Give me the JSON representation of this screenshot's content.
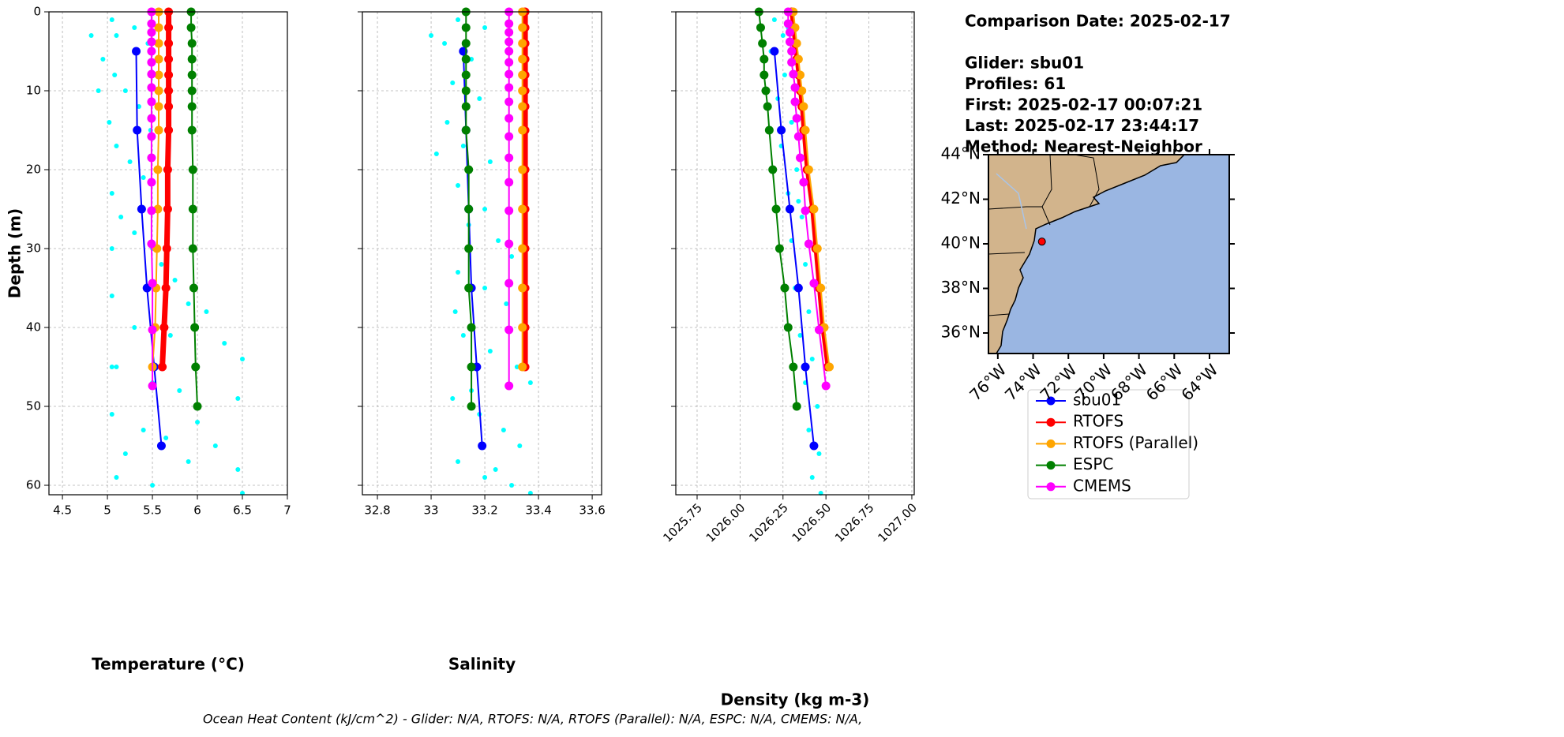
{
  "chart_data": [
    {
      "type": "line",
      "xlabel": "Temperature (°C)",
      "ylabel": "Depth (m)",
      "xlim": [
        4.35,
        7.0
      ],
      "xticks": [
        4.5,
        5.0,
        5.5,
        6.0,
        6.5,
        7.0
      ],
      "ylim": [
        0,
        61.2
      ],
      "y_inverted": true,
      "yticks": [
        0,
        10,
        20,
        30,
        40,
        50,
        60
      ],
      "ytick_labels": true,
      "grid": true,
      "xtick_rotation": 0,
      "scatter": {
        "color": "#00ffff",
        "x": [
          5.05,
          5.1,
          5.3,
          5.45,
          4.95,
          5.08,
          5.2,
          5.35,
          5.02,
          5.1,
          5.25,
          5.4,
          5.05,
          5.15,
          5.3,
          5.5,
          5.6,
          5.75,
          5.05,
          5.9,
          6.1,
          5.3,
          5.7,
          6.3,
          6.5,
          5.1,
          5.5,
          5.8,
          6.45,
          5.05,
          5.4,
          5.65,
          6.2,
          5.9,
          6.45,
          5.1,
          5.5,
          6.5,
          5.2,
          6.0,
          5.05,
          5.05,
          5.48,
          5.52,
          4.82,
          4.9
        ],
        "y": [
          1,
          3,
          2,
          4,
          6,
          8,
          10,
          12,
          14,
          17,
          19,
          21,
          23,
          26,
          28,
          30,
          32,
          34,
          36,
          37,
          38,
          40,
          41,
          42,
          44,
          45,
          47,
          48,
          49,
          51,
          53,
          54,
          55,
          57,
          58,
          59,
          60,
          61,
          56,
          52,
          30,
          45,
          15,
          35,
          3,
          10
        ]
      },
      "series": [
        {
          "name": "sbu01",
          "color": "#0000ff",
          "linewidth": 2,
          "x": [
            5.32,
            5.33,
            5.38,
            5.44,
            5.52,
            5.6
          ],
          "y": [
            5,
            15,
            25,
            35,
            45,
            55
          ]
        },
        {
          "name": "RTOFS",
          "color": "#ff0000",
          "linewidth": 7,
          "x": [
            5.68,
            5.68,
            5.68,
            5.68,
            5.68,
            5.68,
            5.68,
            5.68,
            5.67,
            5.67,
            5.66,
            5.65,
            5.63,
            5.61
          ],
          "y": [
            0,
            2,
            4,
            6,
            8,
            10,
            12,
            15,
            20,
            25,
            30,
            35,
            40,
            45
          ]
        },
        {
          "name": "RTOFS (Parallel)",
          "color": "#ffa500",
          "linewidth": 2,
          "x": [
            5.57,
            5.57,
            5.57,
            5.57,
            5.57,
            5.57,
            5.57,
            5.57,
            5.56,
            5.56,
            5.55,
            5.54,
            5.53,
            5.5
          ],
          "y": [
            0,
            2,
            4,
            6,
            8,
            10,
            12,
            15,
            20,
            25,
            30,
            35,
            40,
            45
          ]
        },
        {
          "name": "ESPC",
          "color": "#008000",
          "linewidth": 2,
          "x": [
            5.93,
            5.93,
            5.94,
            5.94,
            5.94,
            5.94,
            5.94,
            5.94,
            5.95,
            5.95,
            5.95,
            5.96,
            5.97,
            5.98,
            6.0
          ],
          "y": [
            0,
            2,
            4,
            6,
            8,
            10,
            12,
            15,
            20,
            25,
            30,
            35,
            40,
            45,
            50
          ]
        },
        {
          "name": "CMEMS",
          "color": "#ff00ff",
          "linewidth": 2,
          "x": [
            5.49,
            5.49,
            5.49,
            5.49,
            5.49,
            5.49,
            5.49,
            5.49,
            5.49,
            5.49,
            5.49,
            5.49,
            5.49,
            5.49,
            5.49,
            5.5,
            5.5,
            5.5
          ],
          "y": [
            0,
            1.5,
            2.6,
            3.8,
            5,
            6.4,
            7.9,
            9.6,
            11.4,
            13.5,
            15.8,
            18.5,
            21.6,
            25.2,
            29.4,
            34.4,
            40.3,
            47.4
          ]
        }
      ]
    },
    {
      "type": "line",
      "xlabel": "Salinity",
      "xlim": [
        32.744,
        33.635
      ],
      "xticks": [
        32.8,
        33.0,
        33.2,
        33.4,
        33.6
      ],
      "ylim": [
        0,
        61.2
      ],
      "y_inverted": true,
      "yticks": [
        0,
        10,
        20,
        30,
        40,
        50,
        60
      ],
      "ytick_labels": false,
      "grid": true,
      "xtick_rotation": 0,
      "scatter": {
        "color": "#00ffff",
        "x": [
          33.1,
          33.2,
          33.05,
          33.15,
          33.08,
          33.18,
          33.06,
          33.12,
          33.22,
          33.1,
          33.2,
          33.14,
          33.25,
          33.3,
          33.1,
          33.2,
          33.28,
          33.35,
          33.12,
          33.22,
          33.32,
          33.37,
          33.08,
          33.18,
          33.27,
          33.33,
          33.1,
          33.2,
          33.3,
          33.37,
          33.0,
          33.02,
          33.09,
          33.15,
          33.24
        ],
        "y": [
          1,
          2,
          4,
          6,
          9,
          11,
          14,
          17,
          19,
          22,
          25,
          27,
          29,
          31,
          33,
          35,
          37,
          39,
          41,
          43,
          45,
          47,
          49,
          51,
          53,
          55,
          57,
          59,
          60,
          61,
          3,
          18,
          38,
          48,
          58
        ]
      },
      "series": [
        {
          "name": "sbu01",
          "color": "#0000ff",
          "linewidth": 2,
          "x": [
            33.12,
            33.13,
            33.14,
            33.15,
            33.17,
            33.19
          ],
          "y": [
            5,
            15,
            25,
            35,
            45,
            55
          ]
        },
        {
          "name": "RTOFS",
          "color": "#ff0000",
          "linewidth": 7,
          "x": [
            33.35,
            33.35,
            33.35,
            33.35,
            33.35,
            33.35,
            33.35,
            33.35,
            33.35,
            33.35,
            33.35,
            33.35,
            33.35,
            33.35
          ],
          "y": [
            0,
            2,
            4,
            6,
            8,
            10,
            12,
            15,
            20,
            25,
            30,
            35,
            40,
            45
          ]
        },
        {
          "name": "RTOFS (Parallel)",
          "color": "#ffa500",
          "linewidth": 2,
          "x": [
            33.34,
            33.34,
            33.34,
            33.34,
            33.34,
            33.34,
            33.34,
            33.34,
            33.34,
            33.34,
            33.34,
            33.34,
            33.34,
            33.34
          ],
          "y": [
            0,
            2,
            4,
            6,
            8,
            10,
            12,
            15,
            20,
            25,
            30,
            35,
            40,
            45
          ]
        },
        {
          "name": "ESPC",
          "color": "#008000",
          "linewidth": 2,
          "x": [
            33.13,
            33.13,
            33.13,
            33.13,
            33.13,
            33.13,
            33.13,
            33.13,
            33.14,
            33.14,
            33.14,
            33.14,
            33.15,
            33.15,
            33.15
          ],
          "y": [
            0,
            2,
            4,
            6,
            8,
            10,
            12,
            15,
            20,
            25,
            30,
            35,
            40,
            45,
            50
          ]
        },
        {
          "name": "CMEMS",
          "color": "#ff00ff",
          "linewidth": 2,
          "x": [
            33.29,
            33.29,
            33.29,
            33.29,
            33.29,
            33.29,
            33.29,
            33.29,
            33.29,
            33.29,
            33.29,
            33.29,
            33.29,
            33.29,
            33.29,
            33.29,
            33.29,
            33.29
          ],
          "y": [
            0,
            1.5,
            2.6,
            3.8,
            5,
            6.4,
            7.9,
            9.6,
            11.4,
            13.5,
            15.8,
            18.5,
            21.6,
            25.2,
            29.4,
            34.4,
            40.3,
            47.4
          ]
        }
      ]
    },
    {
      "type": "line",
      "xlabel": "Density (kg m-3)",
      "xlim": [
        1025.626,
        1027.014
      ],
      "xticks": [
        {
          "value": 1025.75,
          "label": "1025.75"
        },
        {
          "value": 1026.0,
          "label": "1026.00"
        },
        {
          "value": 1026.25,
          "label": "1026.25"
        },
        {
          "value": 1026.5,
          "label": "1026.50"
        },
        {
          "value": 1026.75,
          "label": "1026.75"
        },
        {
          "value": 1027.0,
          "label": "1027.00"
        }
      ],
      "ylim": [
        0,
        61.2
      ],
      "y_inverted": true,
      "yticks": [
        0,
        10,
        20,
        30,
        40,
        50,
        60
      ],
      "ytick_labels": false,
      "grid": true,
      "xtick_rotation": 45,
      "scatter": {
        "color": "#00ffff",
        "x": [
          1026.2,
          1026.28,
          1026.18,
          1026.26,
          1026.22,
          1026.3,
          1026.24,
          1026.33,
          1026.28,
          1026.36,
          1026.3,
          1026.38,
          1026.32,
          1026.4,
          1026.35,
          1026.42,
          1026.38,
          1026.45,
          1026.4,
          1026.46,
          1026.42,
          1026.47,
          1026.25,
          1026.34
        ],
        "y": [
          1,
          2,
          5,
          8,
          11,
          14,
          17,
          20,
          23,
          26,
          29,
          32,
          35,
          38,
          41,
          44,
          47,
          50,
          53,
          56,
          59,
          61,
          3,
          24
        ]
      },
      "series": [
        {
          "name": "sbu01",
          "color": "#0000ff",
          "linewidth": 2,
          "x": [
            1026.2,
            1026.24,
            1026.29,
            1026.34,
            1026.38,
            1026.43
          ],
          "y": [
            5,
            15,
            25,
            35,
            45,
            55
          ]
        },
        {
          "name": "RTOFS",
          "color": "#ff0000",
          "linewidth": 5,
          "x": [
            1026.3,
            1026.31,
            1026.32,
            1026.33,
            1026.34,
            1026.35,
            1026.36,
            1026.37,
            1026.39,
            1026.42,
            1026.44,
            1026.46,
            1026.48,
            1026.51
          ],
          "y": [
            0,
            2,
            4,
            6,
            8,
            10,
            12,
            15,
            20,
            25,
            30,
            35,
            40,
            45
          ]
        },
        {
          "name": "RTOFS (Parallel)",
          "color": "#ffa500",
          "linewidth": 2,
          "x": [
            1026.31,
            1026.32,
            1026.33,
            1026.34,
            1026.35,
            1026.36,
            1026.37,
            1026.38,
            1026.4,
            1026.43,
            1026.45,
            1026.47,
            1026.49,
            1026.52
          ],
          "y": [
            0,
            2,
            4,
            6,
            8,
            10,
            12,
            15,
            20,
            25,
            30,
            35,
            40,
            45
          ]
        },
        {
          "name": "ESPC",
          "color": "#008000",
          "linewidth": 2,
          "x": [
            1026.11,
            1026.12,
            1026.13,
            1026.14,
            1026.14,
            1026.15,
            1026.16,
            1026.17,
            1026.19,
            1026.21,
            1026.23,
            1026.26,
            1026.28,
            1026.31,
            1026.33
          ],
          "y": [
            0,
            2,
            4,
            6,
            8,
            10,
            12,
            15,
            20,
            25,
            30,
            35,
            40,
            45,
            50
          ]
        },
        {
          "name": "CMEMS",
          "color": "#ff00ff",
          "linewidth": 2,
          "x": [
            1026.28,
            1026.28,
            1026.29,
            1026.29,
            1026.3,
            1026.3,
            1026.31,
            1026.32,
            1026.32,
            1026.33,
            1026.34,
            1026.35,
            1026.37,
            1026.38,
            1026.4,
            1026.43,
            1026.46,
            1026.5
          ],
          "y": [
            0,
            1.5,
            2.6,
            3.8,
            5,
            6.4,
            7.9,
            9.6,
            11.4,
            13.5,
            15.8,
            18.5,
            21.6,
            25.2,
            29.4,
            34.4,
            40.3,
            47.4
          ]
        }
      ]
    }
  ],
  "info": [
    "Comparison Date: 2025-02-17",
    "",
    "Glider: sbu01",
    "Profiles: 61",
    "First: 2025-02-17 00:07:21",
    "Last: 2025-02-17 23:44:17",
    "Method: Nearest-Neighbor"
  ],
  "map": {
    "lon_extent": [
      -76.53,
      -62.88
    ],
    "lat_extent": [
      35.08,
      44.0
    ],
    "lat_ticks": [
      {
        "value": 44,
        "label": "44°N"
      },
      {
        "value": 42,
        "label": "42°N"
      },
      {
        "value": 40,
        "label": "40°N"
      },
      {
        "value": 38,
        "label": "38°N"
      },
      {
        "value": 36,
        "label": "36°N"
      }
    ],
    "lon_ticks": [
      {
        "value": -76,
        "label": "76°W"
      },
      {
        "value": -74,
        "label": "74°W"
      },
      {
        "value": -72,
        "label": "72°W"
      },
      {
        "value": -70,
        "label": "70°W"
      },
      {
        "value": -68,
        "label": "68°W"
      },
      {
        "value": -66,
        "label": "66°W"
      },
      {
        "value": -64,
        "label": "64°W"
      }
    ],
    "glider_position": {
      "lon": -73.5,
      "lat": 40.1
    }
  },
  "footer": "Ocean Heat Content (kJ/cm^2) - Glider: N/A,  RTOFS: N/A,  RTOFS (Parallel): N/A,  ESPC: N/A,  CMEMS: N/A,"
}
